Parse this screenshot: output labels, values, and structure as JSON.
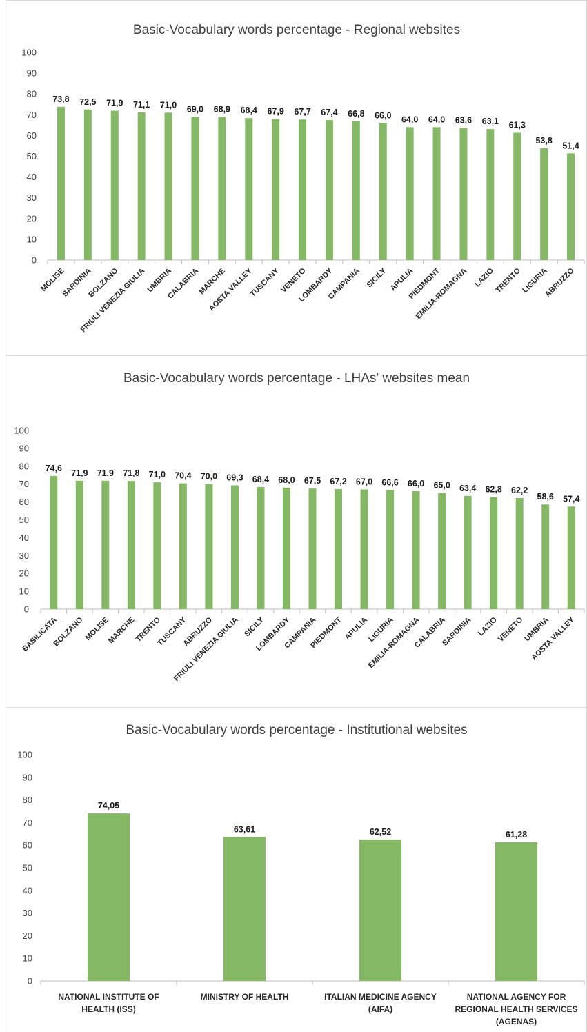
{
  "bar_color": "#84b865",
  "chart_data": [
    {
      "type": "bar",
      "title": "Basic-Vocabulary words percentage - Regional websites",
      "categories": [
        "MOLISE",
        "SARDINIA",
        "BOLZANO",
        "FRIULI VENEZIA GIULIA",
        "UMBRIA",
        "CALABRIA",
        "MARCHE",
        "AOSTA VALLEY",
        "TUSCANY",
        "VENETO",
        "LOMBARDY",
        "CAMPANIA",
        "SICILY",
        "APULIA",
        "PIEDMONT",
        "EMILIA-ROMAGNA",
        "LAZIO",
        "TRENTO",
        "LIGURIA",
        "ABRUZZO"
      ],
      "values": [
        73.8,
        72.5,
        71.9,
        71.1,
        71.0,
        69.0,
        68.9,
        68.4,
        67.9,
        67.7,
        67.4,
        66.8,
        66.0,
        64.0,
        64.0,
        63.6,
        63.1,
        61.3,
        53.8,
        51.4
      ],
      "value_labels": [
        "73,8",
        "72,5",
        "71,9",
        "71,1",
        "71,0",
        "69,0",
        "68,9",
        "68,4",
        "67,9",
        "67,7",
        "67,4",
        "66,8",
        "66,0",
        "64,0",
        "64,0",
        "63,6",
        "63,1",
        "61,3",
        "53,8",
        "51,4"
      ],
      "yticks": [
        "0",
        "10",
        "20",
        "30",
        "40",
        "50",
        "60",
        "70",
        "80",
        "90",
        "100"
      ],
      "ylim": [
        0,
        100
      ],
      "grid": false,
      "legend": false
    },
    {
      "type": "bar",
      "title": "Basic-Vocabulary words percentage - LHAs' websites mean",
      "categories": [
        "BASILICATA",
        "BOLZANO",
        "MOLISE",
        "MARCHE",
        "TRENTO",
        "TUSCANY",
        "ABRUZZO",
        "FRIULI VENEZIA GIULIA",
        "SICILY",
        "LOMBARDY",
        "CAMPANIA",
        "PIEDMONT",
        "APULIA",
        "LIGURIA",
        "EMILIA-ROMAGNA",
        "CALABRIA",
        "SARDINIA",
        "LAZIO",
        "VENETO",
        "UMBRIA",
        "AOSTA VALLEY"
      ],
      "values": [
        74.6,
        71.9,
        71.9,
        71.8,
        71.0,
        70.4,
        70.0,
        69.3,
        68.4,
        68.0,
        67.5,
        67.2,
        67.0,
        66.6,
        66.0,
        65.0,
        63.4,
        62.8,
        62.2,
        58.6,
        57.4
      ],
      "value_labels": [
        "74,6",
        "71,9",
        "71,9",
        "71,8",
        "71,0",
        "70,4",
        "70,0",
        "69,3",
        "68,4",
        "68,0",
        "67,5",
        "67,2",
        "67,0",
        "66,6",
        "66,0",
        "65,0",
        "63,4",
        "62,8",
        "62,2",
        "58,6",
        "57,4"
      ],
      "yticks": [
        "0",
        "10",
        "20",
        "30",
        "40",
        "50",
        "60",
        "70",
        "80",
        "90",
        "100"
      ],
      "ylim": [
        0,
        100
      ],
      "grid": false,
      "legend": false
    },
    {
      "type": "bar",
      "title": "Basic-Vocabulary words percentage - Institutional websites",
      "categories": [
        [
          "NATIONAL INSTITUTE OF",
          "HEALTH (ISS)"
        ],
        [
          "MINISTRY OF HEALTH"
        ],
        [
          "ITALIAN MEDICINE AGENCY",
          "(AIFA)"
        ],
        [
          "NATIONAL AGENCY FOR",
          "REGIONAL HEALTH SERVICES",
          "(AGENAS)"
        ]
      ],
      "values": [
        74.05,
        63.61,
        62.52,
        61.28
      ],
      "value_labels": [
        "74,05",
        "63,61",
        "62,52",
        "61,28"
      ],
      "yticks": [
        "0",
        "10",
        "20",
        "30",
        "40",
        "50",
        "60",
        "70",
        "80",
        "90",
        "100"
      ],
      "ylim": [
        0,
        100
      ],
      "grid": false,
      "legend": false
    }
  ]
}
